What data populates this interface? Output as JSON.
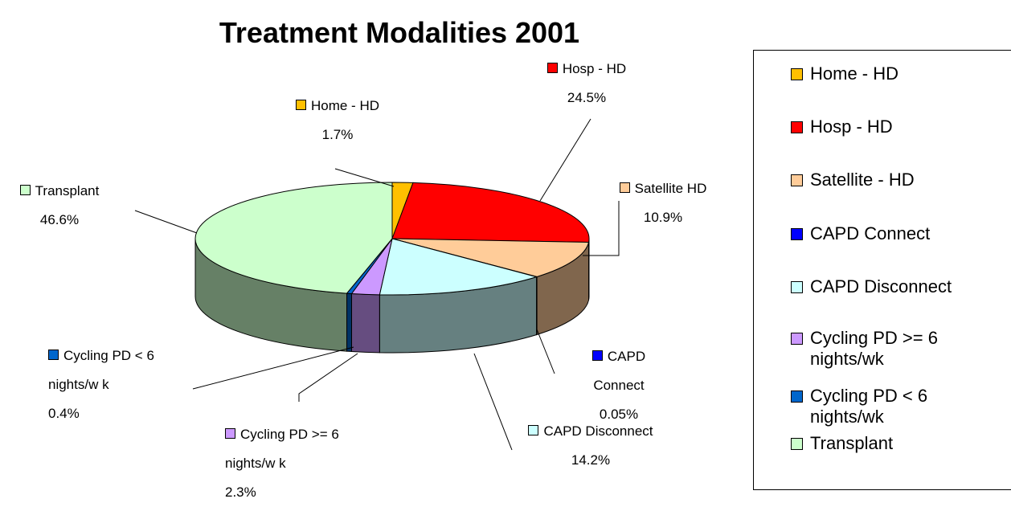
{
  "chart_data": {
    "type": "pie3d",
    "title": "Treatment Modalities 2001",
    "categories": [
      "Home - HD",
      "Hosp - HD",
      "Satellite - HD",
      "CAPD Connect",
      "CAPD Disconnect",
      "Cycling PD >= 6 nights/wk",
      "Cycling PD < 6 nights/wk",
      "Transplant"
    ],
    "label_names": [
      "Home - HD",
      "Hosp  - HD",
      "Satellite HD",
      "CAPD Connect",
      "CAPD Disconnect",
      "Cycling PD >= 6 nights/w k",
      "Cycling PD < 6 nights/w k",
      "Transplant"
    ],
    "values": [
      1.7,
      24.5,
      10.9,
      0.05,
      14.2,
      2.3,
      0.4,
      46.6
    ],
    "value_labels": [
      "1.7%",
      "24.5%",
      "10.9%",
      "0.05%",
      "14.2%",
      "2.3%",
      "0.4%",
      "46.6%"
    ],
    "colors": [
      "#FFC000",
      "#FF0000",
      "#FFCC99",
      "#0000FF",
      "#CCFFFF",
      "#CC99FF",
      "#0066CC",
      "#CCFFCC"
    ],
    "legend": "right"
  }
}
